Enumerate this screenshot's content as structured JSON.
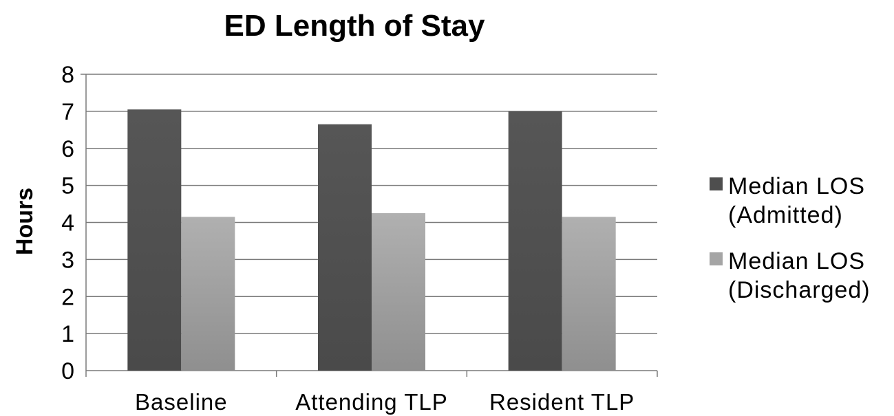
{
  "chart_data": {
    "type": "bar",
    "title": "ED Length of Stay",
    "xlabel": "",
    "ylabel": "Hours",
    "ylim": [
      0,
      8
    ],
    "yticks": [
      "0",
      "1",
      "2",
      "3",
      "4",
      "5",
      "6",
      "7",
      "8"
    ],
    "categories": [
      "Baseline",
      "Attending TLP",
      "Resident TLP"
    ],
    "series": [
      {
        "name": "Median LOS (Admitted)",
        "legend_lines": [
          "Median LOS",
          "(Admitted)"
        ],
        "color": "#565656",
        "values": [
          7.05,
          6.65,
          7.0
        ]
      },
      {
        "name": "Median LOS (Discharged)",
        "legend_lines": [
          "Median LOS",
          "(Discharged)"
        ],
        "color": "#a9a9a9",
        "values": [
          4.15,
          4.25,
          4.15
        ]
      }
    ],
    "grid": true,
    "legend_position": "right"
  }
}
